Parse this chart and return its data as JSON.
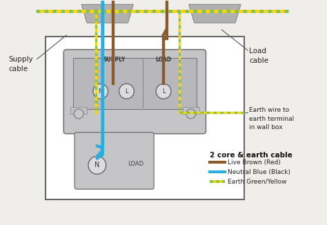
{
  "bg_color": "#f0eeea",
  "box_facecolor": "#e0e0e0",
  "box_edgecolor": "#666666",
  "unit_facecolor": "#c5c5c8",
  "unit_edgecolor": "#888888",
  "grommet_facecolor": "#b0b0b0",
  "grommet_edgecolor": "#888888",
  "brown": "#8B5A2B",
  "blue": "#29AEDD",
  "green": "#8BC34A",
  "yellow": "#FFD600",
  "title": "2 core & earth cable",
  "legend_items": [
    {
      "label": "Live Brown (Red)",
      "color": "#8B5A2B"
    },
    {
      "label": "Neutral Blue (Black)",
      "color": "#29AEDD"
    },
    {
      "label": "Earth Green/Yellow",
      "color1": "#8BC34A",
      "color2": "#FFD600"
    }
  ],
  "supply_label": "Supply\ncable",
  "load_label": "Load\ncable",
  "earth_label": "Earth wire to\nearth terminal\nin wall box"
}
